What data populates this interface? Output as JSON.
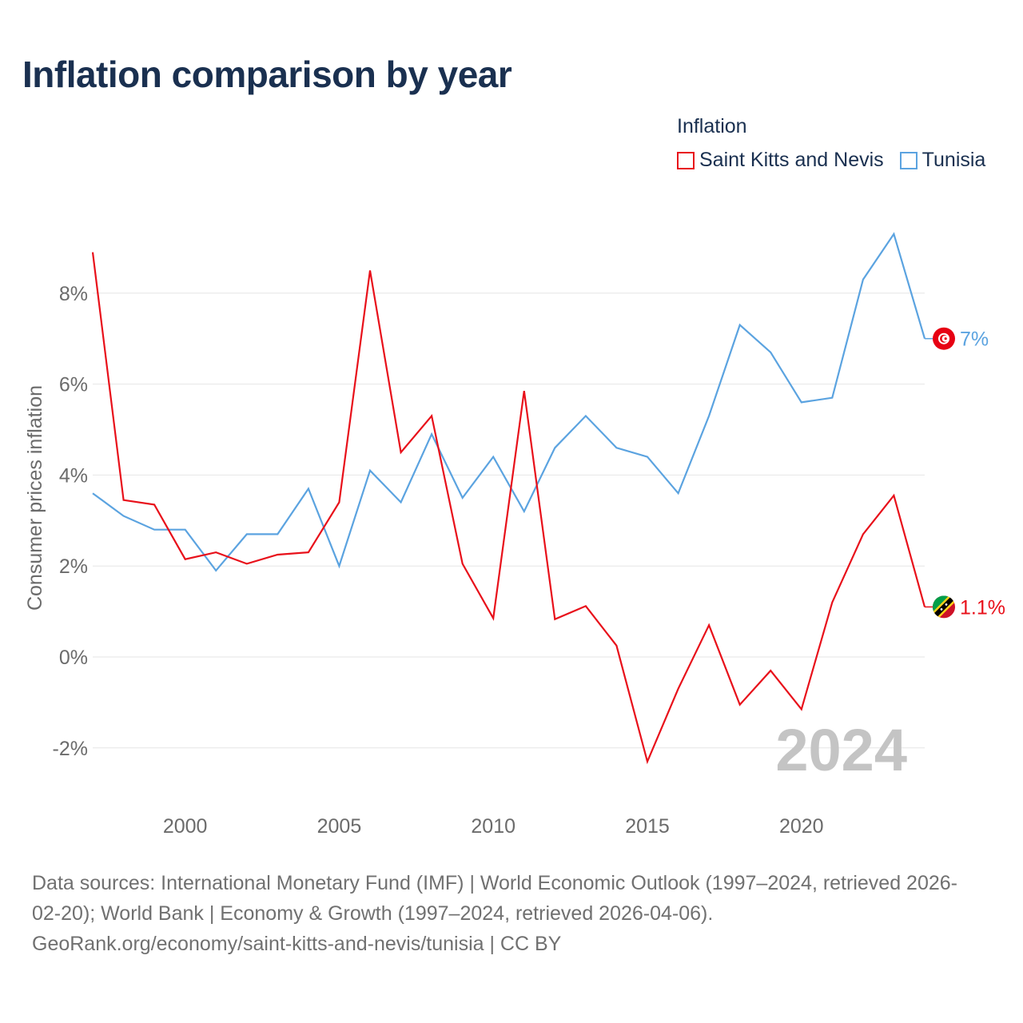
{
  "title": "Inflation comparison by year",
  "legend_title": "Inflation",
  "year_watermark": "2024",
  "chart_data": {
    "type": "line",
    "title": "Inflation comparison by year",
    "xlabel": "",
    "ylabel": "Consumer prices inflation",
    "x": [
      1997,
      1998,
      1999,
      2000,
      2001,
      2002,
      2003,
      2004,
      2005,
      2006,
      2007,
      2008,
      2009,
      2010,
      2011,
      2012,
      2013,
      2014,
      2015,
      2016,
      2017,
      2018,
      2019,
      2020,
      2021,
      2022,
      2023,
      2024
    ],
    "xlim": [
      1997,
      2024
    ],
    "ylim": [
      -3,
      9.5
    ],
    "yticks": [
      -2,
      0,
      2,
      4,
      6,
      8
    ],
    "ytick_labels": [
      "-2%",
      "0%",
      "2%",
      "4%",
      "6%",
      "8%"
    ],
    "xticks": [
      2000,
      2005,
      2010,
      2015,
      2020
    ],
    "xtick_labels": [
      "2000",
      "2005",
      "2010",
      "2015",
      "2020"
    ],
    "grid": true,
    "legend_position": "top-right",
    "series": [
      {
        "name": "Saint Kitts and Nevis",
        "color": "#e8101a",
        "end_label": "1.1%",
        "flag": "saint-kitts-and-nevis-flag-icon",
        "values": [
          8.9,
          3.45,
          3.35,
          2.15,
          2.3,
          2.05,
          2.25,
          2.3,
          3.4,
          8.5,
          4.5,
          5.3,
          2.05,
          0.85,
          5.85,
          0.83,
          1.12,
          0.25,
          -2.3,
          -0.7,
          0.7,
          -1.05,
          -0.3,
          -1.15,
          1.2,
          2.7,
          3.55,
          1.1
        ]
      },
      {
        "name": "Tunisia",
        "color": "#5ba3e0",
        "end_label": "7%",
        "flag": "tunisia-flag-icon",
        "values": [
          3.6,
          3.1,
          2.8,
          2.8,
          1.9,
          2.7,
          2.7,
          3.7,
          2.0,
          4.1,
          3.4,
          4.9,
          3.5,
          4.4,
          3.2,
          4.6,
          5.3,
          4.6,
          4.4,
          3.6,
          5.3,
          7.3,
          6.7,
          5.6,
          5.7,
          8.3,
          9.3,
          7.0
        ]
      }
    ]
  },
  "source": {
    "line1": "Data sources: International Monetary Fund (IMF) | World Economic Outlook (1997–2024, retrieved 2026-",
    "line2": "02-20); World Bank | Economy & Growth (1997–2024, retrieved 2026-04-06).",
    "line3": "GeoRank.org/economy/saint-kitts-and-nevis/tunisia | CC BY"
  }
}
